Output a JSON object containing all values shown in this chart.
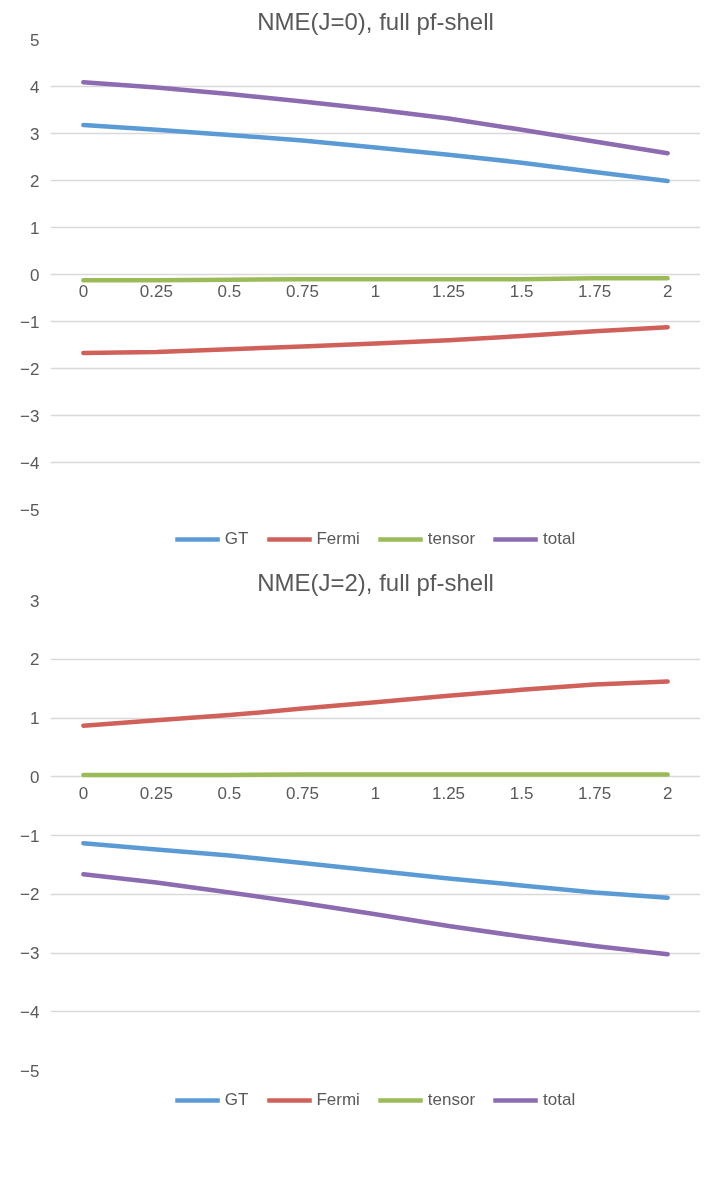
{
  "chart_data": [
    {
      "type": "line",
      "title": "NME(J=0), full pf-shell",
      "categories": [
        "0",
        "0.25",
        "0.5",
        "0.75",
        "1",
        "1.25",
        "1.5",
        "1.75",
        "2"
      ],
      "series": [
        {
          "name": "GT",
          "color": "#5b9bd5",
          "values": [
            3.18,
            3.08,
            2.97,
            2.85,
            2.7,
            2.55,
            2.38,
            2.18,
            1.99
          ]
        },
        {
          "name": "Fermi",
          "color": "#d0605a",
          "values": [
            -1.67,
            -1.65,
            -1.59,
            -1.53,
            -1.47,
            -1.4,
            -1.31,
            -1.21,
            -1.12
          ]
        },
        {
          "name": "tensor",
          "color": "#9bbb59",
          "values": [
            -0.12,
            -0.12,
            -0.11,
            -0.1,
            -0.1,
            -0.1,
            -0.1,
            -0.08,
            -0.08
          ]
        },
        {
          "name": "total",
          "color": "#8c6bb1",
          "values": [
            4.09,
            3.98,
            3.84,
            3.68,
            3.51,
            3.32,
            3.08,
            2.83,
            2.58
          ]
        }
      ],
      "ylim": [
        -5,
        5
      ],
      "yticks": [
        -5,
        -4,
        -3,
        -2,
        -1,
        0,
        1,
        2,
        3,
        4,
        5
      ],
      "grid": "y",
      "legend": "bottom",
      "marker": "none",
      "line_style": "solid"
    },
    {
      "type": "line",
      "title": "NME(J=2), full pf-shell",
      "categories": [
        "0",
        "0.25",
        "0.5",
        "0.75",
        "1",
        "1.25",
        "1.5",
        "1.75",
        "2"
      ],
      "series": [
        {
          "name": "GT",
          "color": "#5b9bd5",
          "values": [
            -1.13,
            -1.24,
            -1.34,
            -1.47,
            -1.6,
            -1.73,
            -1.85,
            -1.97,
            -2.06
          ]
        },
        {
          "name": "Fermi",
          "color": "#d0605a",
          "values": [
            0.87,
            0.96,
            1.05,
            1.16,
            1.27,
            1.38,
            1.48,
            1.57,
            1.62
          ]
        },
        {
          "name": "tensor",
          "color": "#9bbb59",
          "values": [
            0.03,
            0.03,
            0.03,
            0.04,
            0.04,
            0.04,
            0.04,
            0.04,
            0.04
          ]
        },
        {
          "name": "total",
          "color": "#8c6bb1",
          "values": [
            -1.66,
            -1.8,
            -1.97,
            -2.15,
            -2.34,
            -2.54,
            -2.72,
            -2.88,
            -3.02
          ]
        }
      ],
      "ylim": [
        -5,
        3
      ],
      "yticks": [
        -5,
        -4,
        -3,
        -2,
        -1,
        0,
        1,
        2,
        3
      ],
      "grid": "y",
      "legend": "bottom",
      "marker": "none",
      "line_style": "solid"
    }
  ]
}
